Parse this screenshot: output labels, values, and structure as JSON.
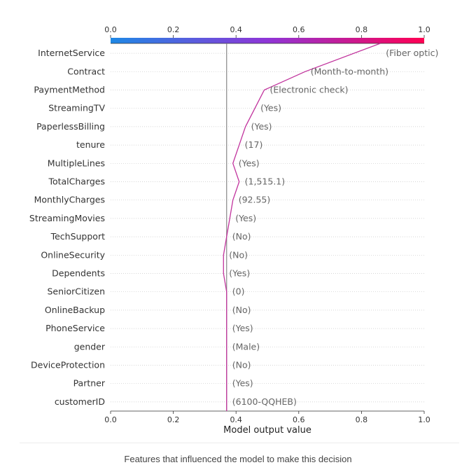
{
  "chart_data": {
    "type": "line",
    "xlabel": "Model output value",
    "xlim": [
      0.0,
      1.0
    ],
    "ticks": [
      "0.0",
      "0.2",
      "0.4",
      "0.6",
      "0.8",
      "1.0"
    ],
    "colorbar_colors": [
      "#1e88e5",
      "#8f35d7",
      "#ff0052"
    ],
    "line_color": "#c1339d",
    "base_value": 0.37,
    "features": [
      {
        "name": "InternetService",
        "value": "(Fiber optic)",
        "x": 0.86
      },
      {
        "name": "Contract",
        "value": "(Month-to-month)",
        "x": 0.62
      },
      {
        "name": "PaymentMethod",
        "value": "(Electronic check)",
        "x": 0.49
      },
      {
        "name": "StreamingTV",
        "value": "(Yes)",
        "x": 0.46
      },
      {
        "name": "PaperlessBilling",
        "value": "(Yes)",
        "x": 0.43
      },
      {
        "name": "tenure",
        "value": "(17)",
        "x": 0.41
      },
      {
        "name": "MultipleLines",
        "value": "(Yes)",
        "x": 0.39
      },
      {
        "name": "TotalCharges",
        "value": "(1,515.1)",
        "x": 0.41
      },
      {
        "name": "MonthlyCharges",
        "value": "(92.55)",
        "x": 0.39
      },
      {
        "name": "StreamingMovies",
        "value": "(Yes)",
        "x": 0.38
      },
      {
        "name": "TechSupport",
        "value": "(No)",
        "x": 0.37
      },
      {
        "name": "OnlineSecurity",
        "value": "(No)",
        "x": 0.36
      },
      {
        "name": "Dependents",
        "value": "(Yes)",
        "x": 0.36
      },
      {
        "name": "SeniorCitizen",
        "value": "(0)",
        "x": 0.37
      },
      {
        "name": "OnlineBackup",
        "value": "(No)",
        "x": 0.37
      },
      {
        "name": "PhoneService",
        "value": "(Yes)",
        "x": 0.37
      },
      {
        "name": "gender",
        "value": "(Male)",
        "x": 0.37
      },
      {
        "name": "DeviceProtection",
        "value": "(No)",
        "x": 0.37
      },
      {
        "name": "Partner",
        "value": "(Yes)",
        "x": 0.37
      },
      {
        "name": "customerID",
        "value": "(6100-QQHEB)",
        "x": 0.37
      }
    ]
  },
  "caption": "Features that influenced the model to make this decision"
}
